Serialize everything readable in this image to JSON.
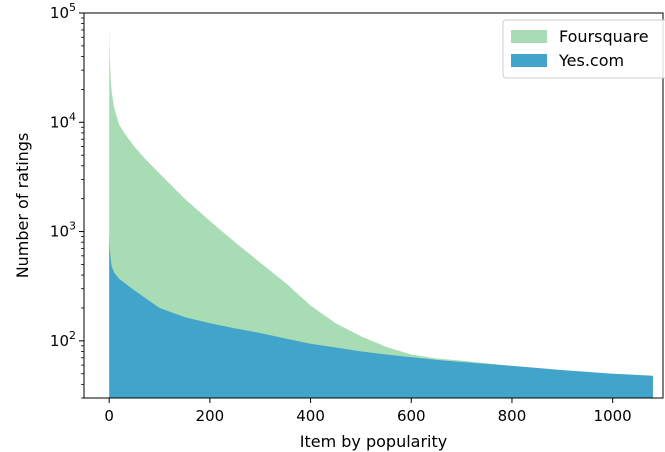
{
  "chart_data": {
    "type": "area",
    "title": "",
    "xlabel": "Item by popularity",
    "ylabel": "Number of ratings",
    "xlim": [
      -50,
      1100
    ],
    "ylim": [
      30,
      100000
    ],
    "yscale": "log",
    "grid": false,
    "legend_position": "top-right",
    "x_ticks": [
      0,
      200,
      400,
      600,
      800,
      1000
    ],
    "x_tick_labels": [
      "0",
      "200",
      "400",
      "600",
      "800",
      "1000"
    ],
    "y_ticks": [
      100,
      1000,
      10000,
      100000
    ],
    "y_tick_labels": [
      {
        "base": "10",
        "exp": "2"
      },
      {
        "base": "10",
        "exp": "3"
      },
      {
        "base": "10",
        "exp": "4"
      },
      {
        "base": "10",
        "exp": "5"
      }
    ],
    "series": [
      {
        "name": "Foursquare",
        "color": "#a8dcb4",
        "x": [
          0,
          1,
          3,
          5,
          10,
          20,
          30,
          50,
          70,
          100,
          150,
          200,
          250,
          300,
          350,
          400,
          450,
          500,
          550,
          600,
          650,
          700,
          800,
          900,
          1000,
          1080
        ],
        "values": [
          80000,
          40000,
          25000,
          19000,
          13500,
          9500,
          8000,
          6000,
          4700,
          3400,
          2000,
          1250,
          800,
          520,
          340,
          210,
          145,
          110,
          88,
          75,
          69,
          66,
          59,
          54,
          50,
          48
        ]
      },
      {
        "name": "Yes.com",
        "color": "#43a4cb",
        "x": [
          0,
          1,
          3,
          5,
          10,
          20,
          30,
          50,
          70,
          100,
          150,
          200,
          250,
          300,
          350,
          400,
          450,
          500,
          550,
          600,
          650,
          700,
          800,
          900,
          1000,
          1080
        ],
        "values": [
          950,
          700,
          560,
          480,
          420,
          370,
          340,
          290,
          250,
          200,
          165,
          145,
          130,
          118,
          105,
          94,
          87,
          80,
          75,
          71,
          67,
          64,
          59,
          54,
          50,
          48
        ]
      }
    ]
  }
}
